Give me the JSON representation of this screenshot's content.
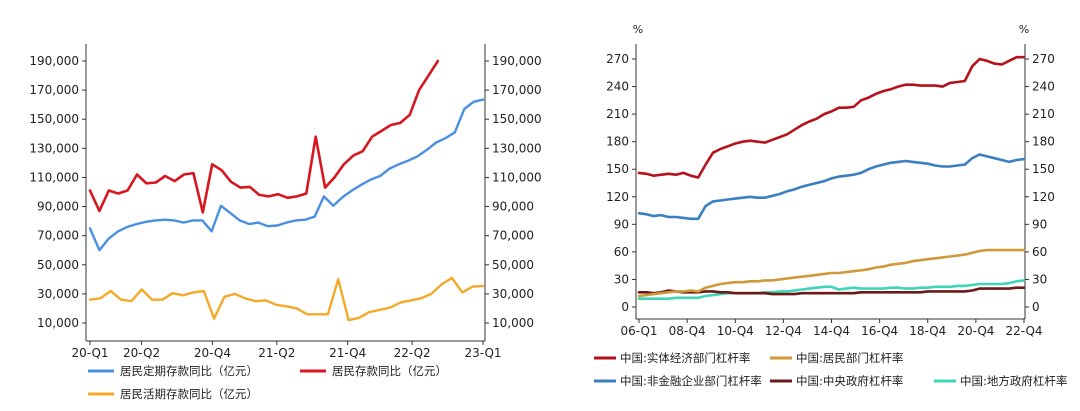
{
  "chart_data": [
    {
      "type": "line",
      "title": "",
      "yleft_ticks": [
        "190,000",
        "170,000",
        "150,000",
        "130,000",
        "110,000",
        "90,000",
        "70,000",
        "50,000",
        "30,000",
        "10,000"
      ],
      "yright_ticks": [
        "190,000",
        "170,000",
        "150,000",
        "130,000",
        "110,000",
        "90,000",
        "70,000",
        "50,000",
        "30,000",
        "10,000"
      ],
      "ylim": [
        2000,
        196000
      ],
      "x_count": 50,
      "xlabels": [
        {
          "label": "20-Q1",
          "i": 0
        },
        {
          "label": "20-Q2",
          "i": 8
        },
        {
          "label": "20-Q4",
          "i": 19
        },
        {
          "label": "21-Q2",
          "i": 29
        },
        {
          "label": "21-Q4",
          "i": 40
        },
        {
          "label": "22-Q2",
          "i": 50
        },
        {
          "label": "23-Q1",
          "i": 61
        }
      ],
      "x_total": 62,
      "series": [
        {
          "name": "居民定期存款同比（亿元）",
          "color": "#4a90e2",
          "values": [
            75000,
            60000,
            68000,
            73000,
            76000,
            78000,
            79500,
            80500,
            81000,
            80500,
            79000,
            80500,
            80500,
            73000,
            90500,
            85500,
            80500,
            78000,
            79000,
            76500,
            77000,
            79000,
            80500,
            81000,
            83000,
            97000,
            90500,
            96500,
            101000,
            105000,
            108500,
            111000,
            116000,
            119000,
            121500,
            124500,
            129000,
            134000,
            137000,
            141000,
            157000,
            162000,
            163500
          ]
        },
        {
          "name": "居民存款同比（亿元）",
          "color": "#d7161f",
          "values": [
            101000,
            87000,
            101000,
            99000,
            101000,
            112000,
            106000,
            106500,
            111000,
            107500,
            112000,
            113000,
            86000,
            119000,
            115000,
            107000,
            103000,
            103500,
            98000,
            97000,
            98500,
            96000,
            97000,
            99000,
            138000,
            103000,
            110000,
            119000,
            125000,
            128000,
            138000,
            142000,
            146000,
            147500,
            153000,
            170000,
            180000,
            190000
          ]
        },
        {
          "name": "居民活期存款同比（亿元）",
          "color": "#f4a928",
          "values": [
            26000,
            27000,
            32000,
            26000,
            25000,
            33000,
            26000,
            26000,
            30500,
            29000,
            31000,
            32000,
            13000,
            28000,
            30000,
            27000,
            25000,
            25500,
            22500,
            21500,
            20000,
            16000,
            16000,
            16000,
            40000,
            12000,
            13500,
            17500,
            19000,
            20500,
            24000,
            25500,
            27000,
            30000,
            36500,
            41000,
            31000,
            35000,
            35500
          ]
        }
      ],
      "legend": [
        "居民定期存款同比（亿元）",
        "居民存款同比（亿元）",
        "居民活期存款同比（亿元）"
      ]
    },
    {
      "type": "line",
      "title": "",
      "unit_left": "%",
      "unit_right": "%",
      "yleft_ticks": [
        "270",
        "240",
        "210",
        "180",
        "150",
        "120",
        "90",
        "60",
        "30",
        "0"
      ],
      "yright_ticks": [
        "270",
        "240",
        "210",
        "180",
        "150",
        "120",
        "90",
        "60",
        "30",
        "0"
      ],
      "ylim": [
        -10,
        280
      ],
      "xlabels": [
        "06-Q1",
        "08-Q4",
        "10-Q4",
        "12-Q4",
        "14-Q4",
        "16-Q4",
        "18-Q4",
        "20-Q4",
        "22-Q4"
      ],
      "series": [
        {
          "name": "中国:实体经济部门杠杆率",
          "color": "#b5121b",
          "values": [
            146,
            145,
            143,
            144,
            145,
            144,
            146,
            143,
            141,
            155,
            168,
            172,
            175,
            178,
            180,
            181,
            180,
            179,
            182,
            185,
            188,
            193,
            198,
            202,
            205,
            210,
            213,
            217,
            217,
            218,
            225,
            228,
            232,
            235,
            237,
            240,
            242,
            242,
            241,
            241,
            241,
            240,
            244,
            245,
            246,
            262,
            270,
            268,
            265,
            264,
            268,
            272,
            272
          ]
        },
        {
          "name": "中国:居民部门杠杆率",
          "color": "#d09a3c",
          "values": [
            12,
            13,
            14,
            15,
            16,
            17,
            17,
            18,
            17,
            21,
            23,
            25,
            26,
            27,
            27,
            28,
            28,
            29,
            29,
            30,
            31,
            32,
            33,
            34,
            35,
            36,
            37,
            37,
            38,
            39,
            40,
            41,
            43,
            44,
            46,
            47,
            48,
            50,
            51,
            52,
            53,
            54,
            55,
            56,
            57,
            59,
            61,
            62,
            62,
            62,
            62,
            62,
            62
          ]
        },
        {
          "name": "中国:非金融企业部门杠杆率",
          "color": "#3a7fc1",
          "values": [
            102,
            101,
            99,
            100,
            98,
            98,
            97,
            96,
            96,
            110,
            115,
            116,
            117,
            118,
            119,
            120,
            119,
            119,
            121,
            123,
            126,
            128,
            131,
            133,
            135,
            137,
            140,
            142,
            143,
            144,
            146,
            150,
            153,
            155,
            157,
            158,
            159,
            158,
            157,
            156,
            154,
            153,
            153,
            154,
            155,
            162,
            166,
            164,
            162,
            160,
            158,
            160,
            161
          ]
        },
        {
          "name": "中国:中央政府杠杆率",
          "color": "#6b1a1a",
          "values": [
            16,
            16,
            15,
            16,
            18,
            17,
            16,
            16,
            16,
            17,
            17,
            16,
            16,
            15,
            15,
            15,
            15,
            15,
            14,
            14,
            14,
            14,
            15,
            15,
            15,
            15,
            15,
            15,
            15,
            15,
            16,
            16,
            16,
            16,
            16,
            16,
            16,
            16,
            16,
            17,
            17,
            17,
            17,
            17,
            17,
            18,
            20,
            20,
            20,
            20,
            20,
            21,
            21
          ]
        },
        {
          "name": "中国:地方政府杠杆率",
          "color": "#3fd6b8",
          "values": [
            9,
            9,
            9,
            9,
            9,
            10,
            10,
            10,
            10,
            12,
            13,
            14,
            15,
            15,
            15,
            15,
            15,
            16,
            16,
            17,
            17,
            18,
            19,
            20,
            21,
            22,
            22,
            19,
            20,
            21,
            20,
            20,
            20,
            20,
            21,
            21,
            20,
            20,
            21,
            21,
            22,
            22,
            22,
            23,
            23,
            24,
            25,
            25,
            25,
            25,
            26,
            28,
            29
          ]
        }
      ],
      "legend": [
        "中国:实体经济部门杠杆率",
        "中国:居民部门杠杆率",
        "中国:非金融企业部门杠杆率",
        "中国:中央政府杠杆率",
        "中国:地方政府杠杆率"
      ]
    }
  ]
}
